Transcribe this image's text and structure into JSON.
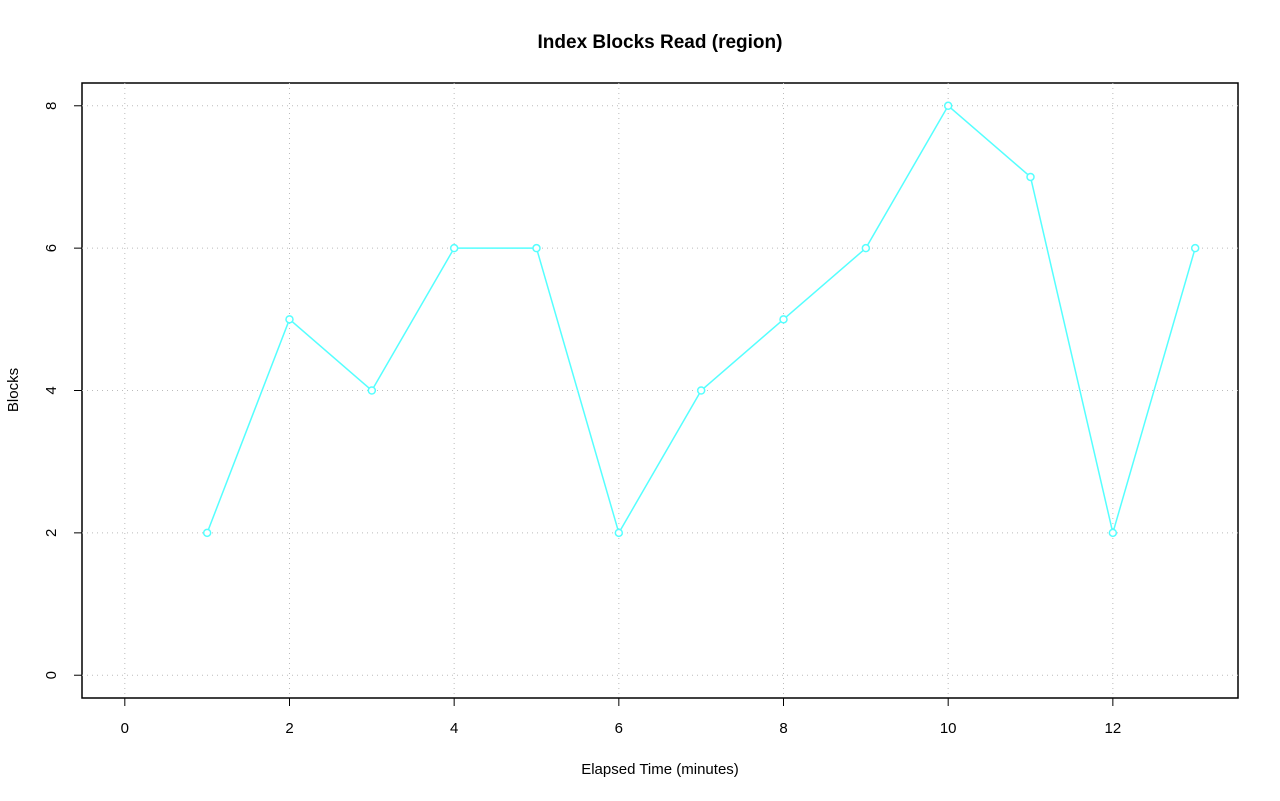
{
  "chart_data": {
    "type": "line",
    "title": "Index Blocks Read (region)",
    "x_label": "Elapsed Time (minutes)",
    "y_label": "Blocks",
    "x": [
      1,
      2,
      3,
      4,
      5,
      6,
      7,
      8,
      9,
      10,
      11,
      12,
      13
    ],
    "series": [
      {
        "color": "#55ffff",
        "values": [
          2,
          5,
          4,
          6,
          6,
          2,
          4,
          5,
          6,
          8,
          7,
          2,
          6
        ]
      }
    ],
    "xlim": [
      -0.52,
      13.52
    ],
    "ylim": [
      -0.32,
      8.32
    ],
    "xticks": [
      0,
      2,
      4,
      6,
      8,
      10,
      12
    ],
    "yticks": [
      0,
      2,
      4,
      6,
      8
    ],
    "grid": true
  }
}
